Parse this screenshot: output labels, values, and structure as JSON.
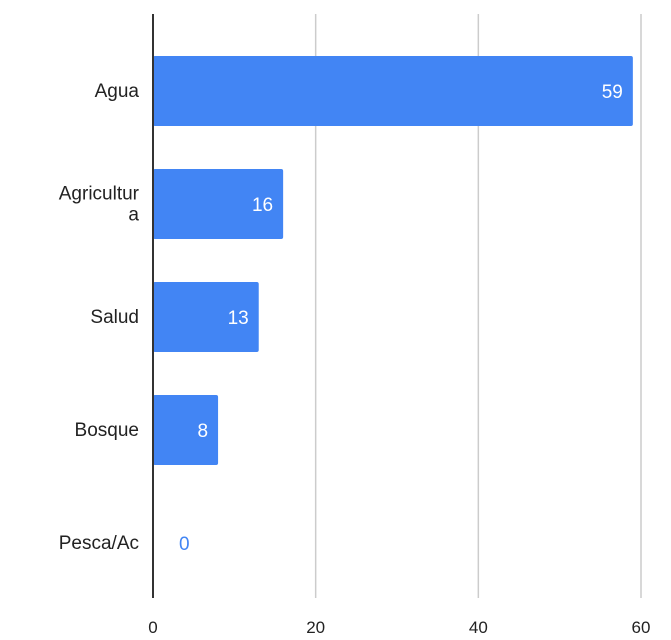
{
  "chart_data": {
    "type": "bar",
    "orientation": "horizontal",
    "categories": [
      [
        "Agua"
      ],
      [
        "Agricultur",
        "a"
      ],
      [
        "Salud"
      ],
      [
        "Bosque"
      ],
      [
        "Pesca/Ac"
      ]
    ],
    "values": [
      59,
      16,
      13,
      8,
      0
    ],
    "value_labels": [
      "59",
      "16",
      "13",
      "8",
      "0"
    ],
    "title": "",
    "xlabel": "",
    "ylabel": "",
    "xlim": [
      0,
      60
    ],
    "xticks": [
      0,
      20,
      40,
      60
    ],
    "xtick_labels": [
      "0",
      "20",
      "40",
      "60"
    ],
    "grid": true,
    "legend": "none",
    "colors": {
      "bar": "#4285f4",
      "label_inside": "#ffffff",
      "label_outside": "#4285f4",
      "grid": "#cccccc",
      "axis": "#333333"
    }
  }
}
